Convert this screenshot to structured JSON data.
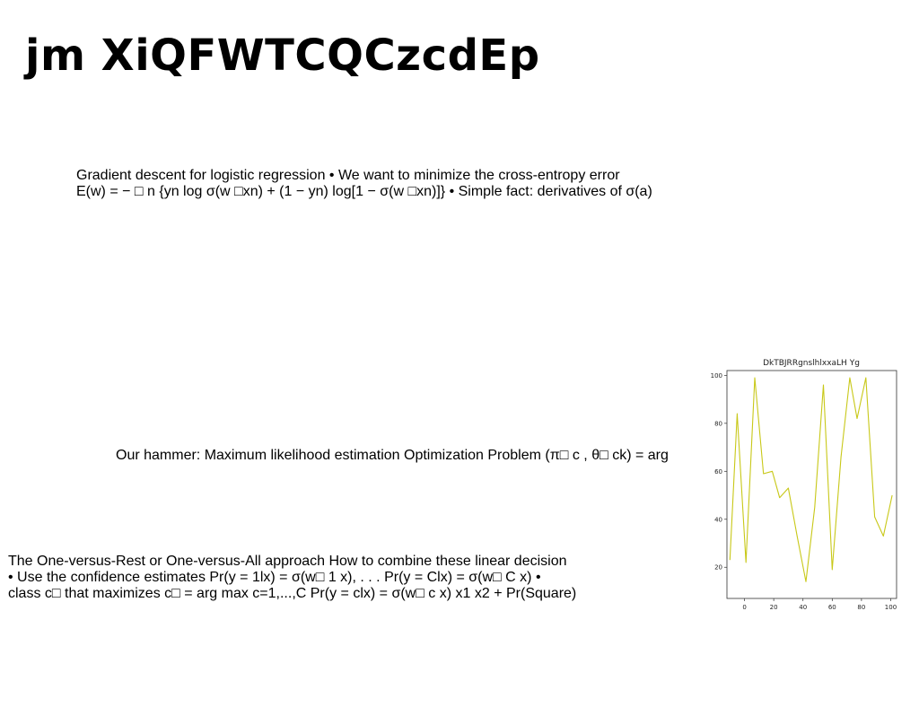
{
  "slide": {
    "title": "jm XiQFWTCQCzcdEp"
  },
  "blocks": {
    "gradient": {
      "lines": [
        "Gradient descent for logistic regression • We want to minimize the cross-entropy error",
        "E(w) = − □ n {yn log σ(w □xn) + (1 − yn) log[1 − σ(w □xn)]} • Simple fact: derivatives of σ(a)"
      ]
    },
    "hammer": {
      "lines": [
        "Our hammer: Maximum likelihood estimation Optimization Problem (π□ c , θ□ ck) = arg"
      ]
    },
    "ovr": {
      "lines": [
        "The One-versus-Rest or One-versus-All approach How to combine these linear decision",
        "• Use the confidence estimates Pr(y = 1lx) = σ(w□ 1 x), . . . Pr(y = Clx) = σ(w□ C x) •",
        "class c□ that maximizes c□ = arg max c=1,...,C Pr(y = clx) = σ(w□ c x) x1 x2 + Pr(Square)"
      ]
    }
  },
  "chart_data": {
    "type": "line",
    "title": "DkTBJRRgnslhlxxaLH  Yg",
    "xlabel": "",
    "ylabel": "",
    "xlim": [
      -12,
      104
    ],
    "ylim": [
      7,
      102
    ],
    "xticks": [
      0,
      20,
      40,
      60,
      80,
      100
    ],
    "yticks": [
      20,
      40,
      60,
      80,
      100
    ],
    "grid": false,
    "color": "#c8c818",
    "x": [
      -10,
      -5,
      1,
      7,
      13,
      19,
      24,
      30,
      36,
      42,
      48,
      54,
      60,
      66,
      72,
      77,
      83,
      89,
      95,
      101
    ],
    "y": [
      23,
      84,
      22,
      99,
      59,
      60,
      49,
      53,
      33,
      14,
      45,
      96,
      19,
      66,
      99,
      82,
      99,
      41,
      33,
      50
    ]
  }
}
